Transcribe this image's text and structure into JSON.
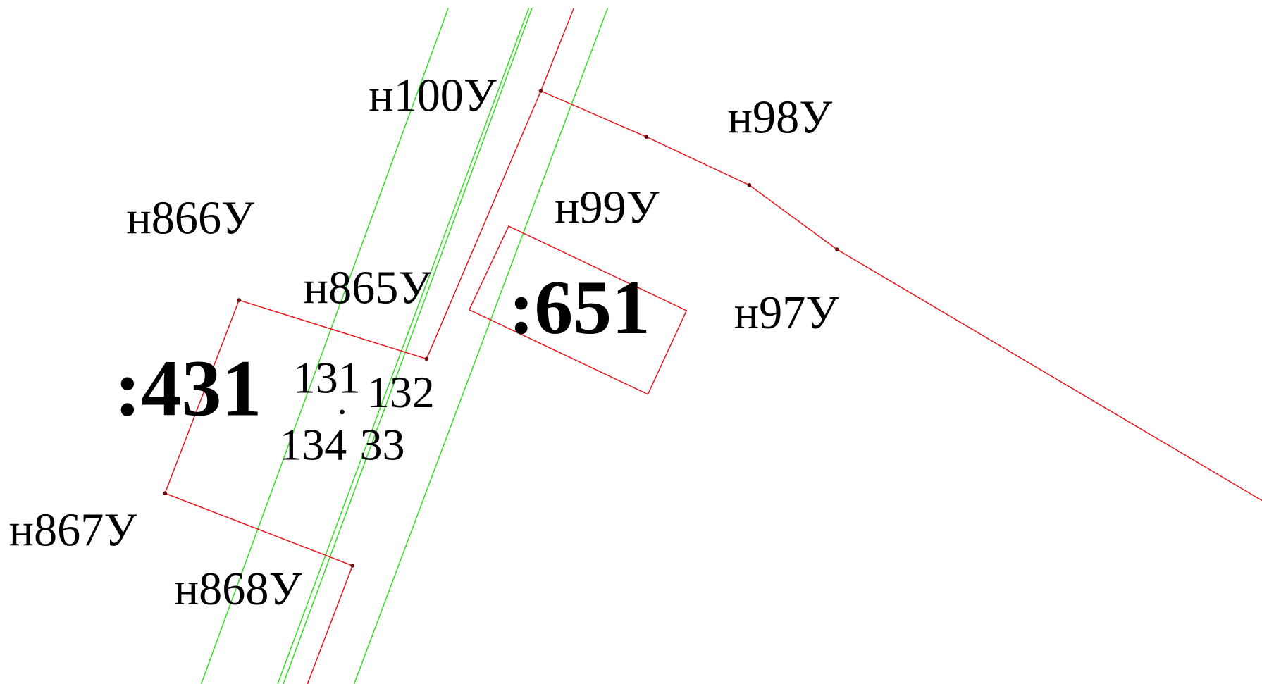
{
  "labels": {
    "n100": "н100У",
    "n98": "н98У",
    "n866": "н866У",
    "n99": "н99У",
    "n865": "н865У",
    "n97": "н97У",
    "n867": "н867У",
    "n868": "н868У",
    "p651": ":651",
    "p431": ":431",
    "c131": "131",
    "c132": "132",
    "c134": "134",
    "c133": "33"
  }
}
